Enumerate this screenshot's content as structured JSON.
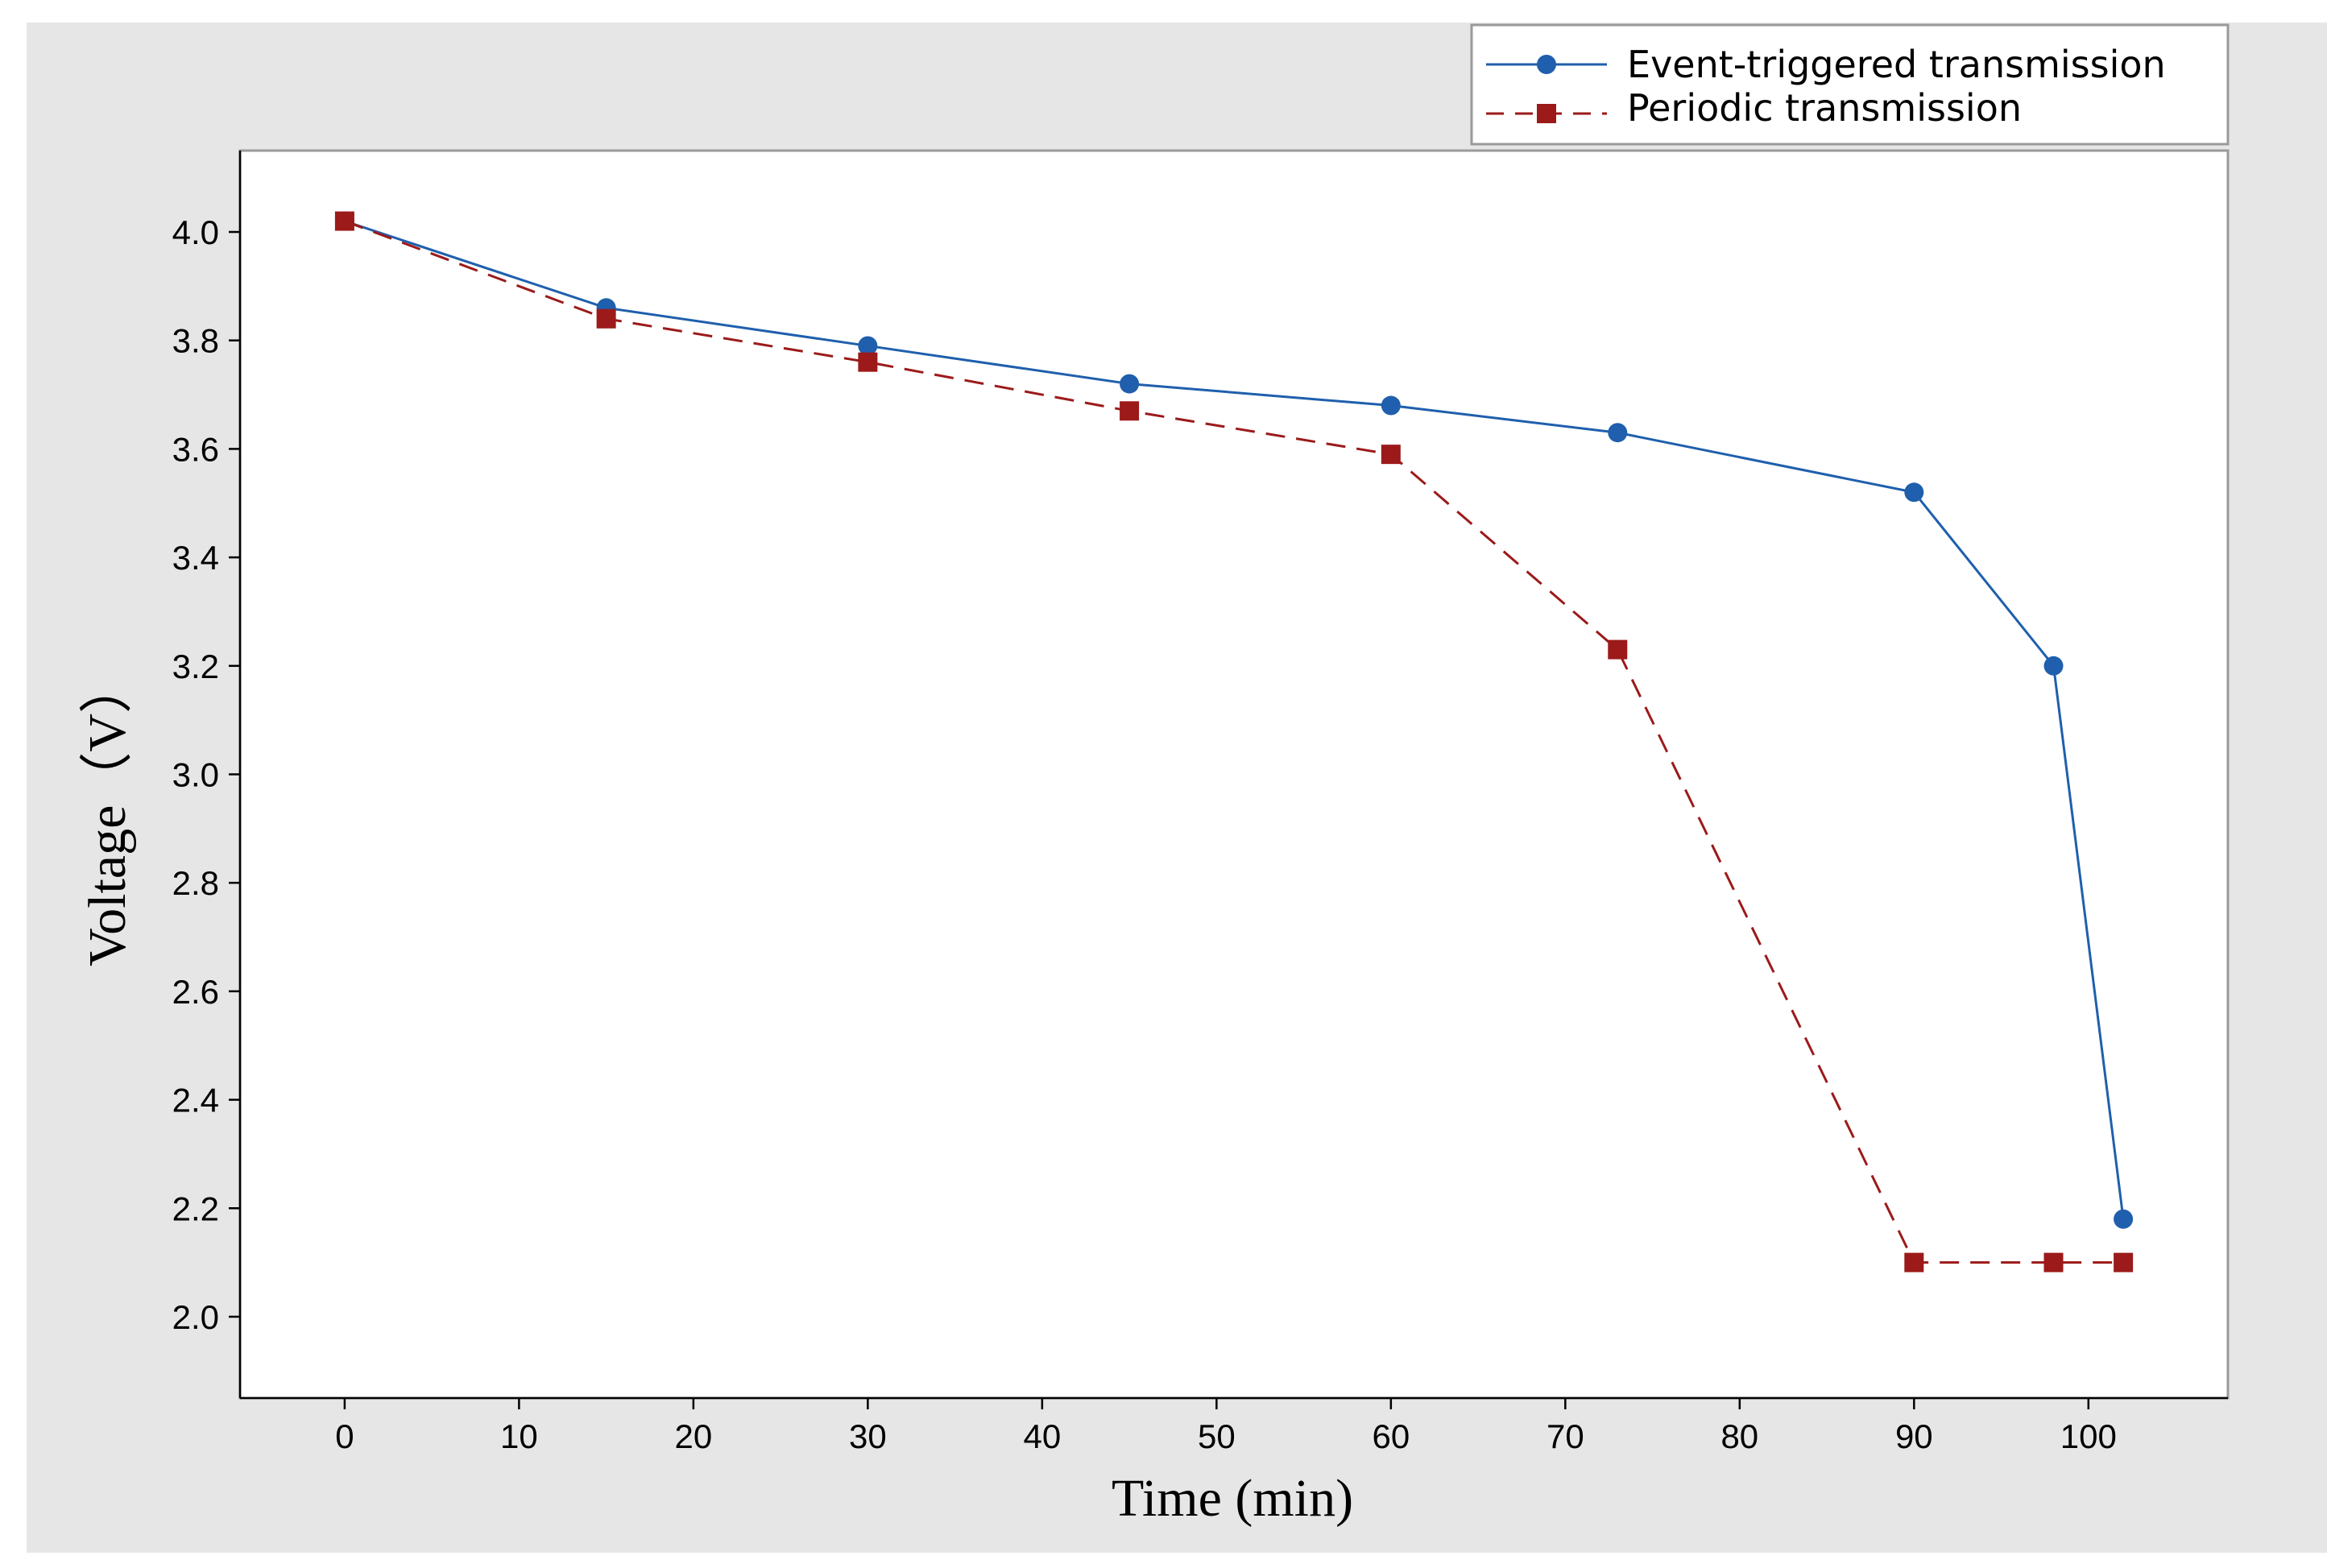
{
  "chart_data": {
    "type": "line",
    "title": "",
    "xlabel": "Time (min)",
    "ylabel": "Voltage（V）",
    "xlim": [
      -6,
      108
    ],
    "ylim": [
      1.85,
      4.15
    ],
    "x_ticks": [
      0,
      10,
      20,
      30,
      40,
      50,
      60,
      70,
      80,
      90,
      100
    ],
    "y_ticks": [
      2.0,
      2.2,
      2.4,
      2.6,
      2.8,
      3.0,
      3.2,
      3.4,
      3.6,
      3.8,
      4.0
    ],
    "grid": false,
    "legend_position": "top-right, above plot",
    "series": [
      {
        "name": "Event-triggered transmission",
        "color": "#1f5fad",
        "line_style": "solid",
        "marker": "circle",
        "x": [
          0,
          15,
          30,
          45,
          60,
          73,
          90,
          98,
          102
        ],
        "y": [
          4.02,
          3.86,
          3.79,
          3.72,
          3.68,
          3.63,
          3.52,
          3.2,
          2.18
        ]
      },
      {
        "name": "Periodic transmission",
        "color": "#9c1a1a",
        "line_style": "dashed",
        "marker": "square",
        "x": [
          0,
          15,
          30,
          45,
          60,
          73,
          90,
          98,
          102
        ],
        "y": [
          4.02,
          3.84,
          3.76,
          3.67,
          3.59,
          3.23,
          2.1,
          2.1,
          2.1
        ]
      }
    ]
  }
}
